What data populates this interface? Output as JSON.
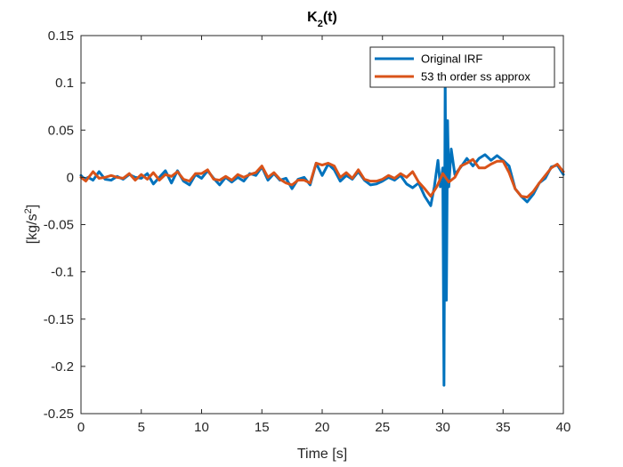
{
  "chart_data": {
    "type": "line",
    "title_main": "K",
    "title_sub": "2",
    "title_rest": "(t)",
    "xlabel": "Time [s]",
    "ylabel_main": "[kg/s",
    "ylabel_sup": "2",
    "ylabel_end": "]",
    "xlim": [
      0,
      40
    ],
    "ylim": [
      -0.25,
      0.15
    ],
    "xticks": [
      0,
      5,
      10,
      15,
      20,
      25,
      30,
      35,
      40
    ],
    "xtick_labels": [
      "0",
      "5",
      "10",
      "15",
      "20",
      "25",
      "30",
      "35",
      "40"
    ],
    "yticks": [
      0.15,
      0.1,
      0.05,
      0,
      -0.05,
      -0.1,
      -0.15,
      -0.2,
      -0.25
    ],
    "ytick_labels": [
      "0.15",
      "0.1",
      "0.05",
      "0",
      "-0.05",
      "-0.1",
      "-0.15",
      "-0.2",
      "-0.25"
    ],
    "grid": false,
    "legend_position": "top-right",
    "series": [
      {
        "name": "Original IRF",
        "color": "#0072BD",
        "x": [
          0,
          0.3,
          0.6,
          1.0,
          1.5,
          2.0,
          2.5,
          3.0,
          3.5,
          4.0,
          4.5,
          5.0,
          5.5,
          6.0,
          6.5,
          7.0,
          7.5,
          8.0,
          8.5,
          9.0,
          9.5,
          10.0,
          10.5,
          11.0,
          11.5,
          12.0,
          12.5,
          13.0,
          13.5,
          14.0,
          14.5,
          15.0,
          15.5,
          16.0,
          16.5,
          17.0,
          17.5,
          18.0,
          18.5,
          19.0,
          19.5,
          20.0,
          20.5,
          21.0,
          21.5,
          22.0,
          22.5,
          23.0,
          23.5,
          24.0,
          24.5,
          25.0,
          25.5,
          26.0,
          26.5,
          27.0,
          27.5,
          28.0,
          28.5,
          29.0,
          29.3,
          29.6,
          29.8,
          30.0,
          30.1,
          30.2,
          30.3,
          30.4,
          30.5,
          30.7,
          31.0,
          31.5,
          32.0,
          32.5,
          33.0,
          33.5,
          34.0,
          34.5,
          35.0,
          35.5,
          36.0,
          36.5,
          37.0,
          37.5,
          38.0,
          38.5,
          39.0,
          39.5,
          40.0
        ],
        "y": [
          0.002,
          -0.002,
          0.0,
          -0.003,
          0.006,
          -0.002,
          -0.003,
          0.001,
          -0.002,
          0.003,
          0.0,
          -0.001,
          0.004,
          -0.007,
          0.0,
          0.007,
          -0.006,
          0.007,
          -0.004,
          -0.008,
          0.003,
          -0.001,
          0.007,
          -0.001,
          -0.008,
          0.0,
          -0.005,
          0.0,
          -0.004,
          0.004,
          0.002,
          0.011,
          -0.003,
          0.004,
          -0.003,
          -0.001,
          -0.012,
          -0.002,
          0.0,
          -0.008,
          0.015,
          0.002,
          0.014,
          0.008,
          -0.004,
          0.002,
          -0.002,
          0.006,
          -0.003,
          -0.008,
          -0.007,
          -0.004,
          0.0,
          -0.003,
          0.002,
          -0.007,
          -0.011,
          -0.006,
          -0.02,
          -0.03,
          -0.01,
          0.018,
          -0.01,
          0.01,
          -0.22,
          0.108,
          -0.13,
          0.06,
          -0.01,
          0.03,
          0.003,
          0.011,
          0.02,
          0.012,
          0.02,
          0.024,
          0.018,
          0.023,
          0.018,
          0.012,
          -0.012,
          -0.02,
          -0.026,
          -0.018,
          -0.006,
          -0.001,
          0.011,
          0.013,
          0.003
        ]
      },
      {
        "name": "53 th order ss approx",
        "color": "#D95319",
        "x": [
          0,
          0.4,
          1.0,
          1.5,
          2.0,
          2.5,
          3.0,
          3.5,
          4.0,
          4.5,
          5.0,
          5.5,
          6.0,
          6.5,
          7.0,
          7.5,
          8.0,
          8.5,
          9.0,
          9.5,
          10.0,
          10.5,
          11.0,
          11.5,
          12.0,
          12.5,
          13.0,
          13.5,
          14.0,
          14.5,
          15.0,
          15.5,
          16.0,
          16.5,
          17.0,
          17.5,
          18.0,
          18.5,
          19.0,
          19.5,
          20.0,
          20.5,
          21.0,
          21.5,
          22.0,
          22.5,
          23.0,
          23.5,
          24.0,
          24.5,
          25.0,
          25.5,
          26.0,
          26.5,
          27.0,
          27.5,
          28.0,
          28.5,
          29.0,
          29.5,
          30.0,
          30.5,
          31.0,
          31.5,
          32.0,
          32.5,
          33.0,
          33.5,
          34.0,
          34.5,
          35.0,
          35.5,
          36.0,
          36.5,
          37.0,
          37.5,
          38.0,
          38.5,
          39.0,
          39.5,
          40.0
        ],
        "y": [
          0.0,
          -0.004,
          0.006,
          -0.001,
          0.0,
          0.002,
          0.0,
          -0.001,
          0.004,
          -0.003,
          0.003,
          -0.002,
          0.005,
          -0.003,
          0.003,
          0.001,
          0.006,
          -0.002,
          -0.004,
          0.004,
          0.004,
          0.008,
          -0.002,
          -0.003,
          0.001,
          -0.003,
          0.003,
          0.0,
          0.003,
          0.005,
          0.012,
          0.0,
          0.005,
          -0.002,
          -0.006,
          -0.008,
          -0.003,
          -0.003,
          -0.006,
          0.015,
          0.013,
          0.015,
          0.012,
          0.0,
          0.005,
          -0.001,
          0.008,
          -0.002,
          -0.004,
          -0.004,
          -0.002,
          0.002,
          -0.001,
          0.004,
          0.0,
          0.006,
          -0.005,
          -0.012,
          -0.02,
          -0.01,
          0.004,
          -0.005,
          0.0,
          0.012,
          0.015,
          0.019,
          0.01,
          0.01,
          0.014,
          0.017,
          0.017,
          0.005,
          -0.012,
          -0.02,
          -0.021,
          -0.015,
          -0.006,
          0.002,
          0.01,
          0.014,
          0.006
        ]
      }
    ]
  }
}
